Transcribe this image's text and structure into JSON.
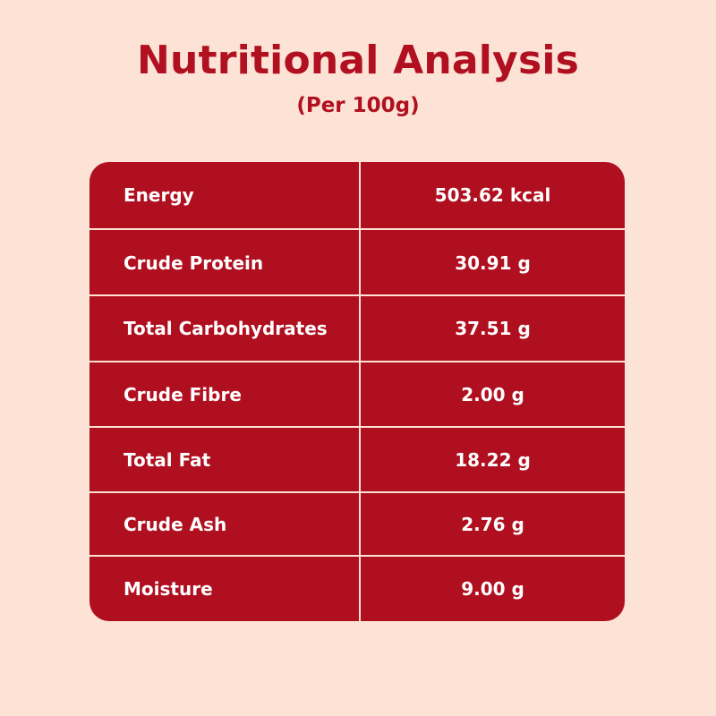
{
  "header": {
    "title": "Nutritional Analysis",
    "subtitle": "(Per 100g)"
  },
  "table": {
    "rows": [
      {
        "label": "Energy",
        "value": "503.62 kcal"
      },
      {
        "label": "Crude Protein",
        "value": "30.91 g"
      },
      {
        "label": "Total Carbohydrates",
        "value": "37.51 g"
      },
      {
        "label": "Crude Fibre",
        "value": "2.00 g"
      },
      {
        "label": "Total Fat",
        "value": "18.22 g"
      },
      {
        "label": "Crude Ash",
        "value": "2.76 g"
      },
      {
        "label": "Moisture",
        "value": "9.00 g"
      }
    ]
  },
  "colors": {
    "background": "#fde3d6",
    "accent": "#b00f1f",
    "cell_text": "#ffffff"
  }
}
